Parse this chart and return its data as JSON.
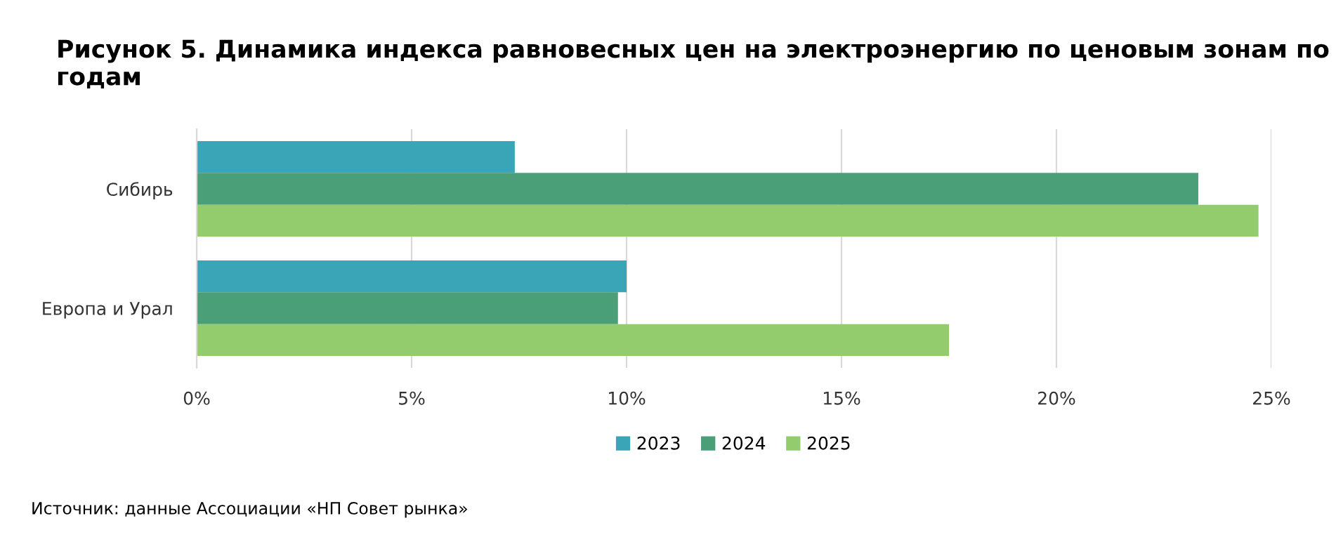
{
  "chart_data": {
    "type": "bar",
    "orientation": "horizontal",
    "title": "Рисунок 5. Динамика индекса равновесных цен на электроэнергию по ценовым зонам по годам",
    "categories": [
      "Сибирь",
      "Европа и Урал"
    ],
    "series": [
      {
        "name": "2023",
        "color": "#3ba5b8",
        "values": [
          7.4,
          10.0
        ]
      },
      {
        "name": "2024",
        "color": "#4a9e78",
        "values": [
          23.3,
          9.8
        ]
      },
      {
        "name": "2025",
        "color": "#92cc6c",
        "values": [
          24.7,
          17.5
        ]
      }
    ],
    "xlim": [
      0,
      25
    ],
    "xticks": [
      {
        "value": 0,
        "label": "0%"
      },
      {
        "value": 5,
        "label": "5%"
      },
      {
        "value": 10,
        "label": "10%"
      },
      {
        "value": 15,
        "label": "15%"
      },
      {
        "value": 20,
        "label": "20%"
      },
      {
        "value": 25,
        "label": "25%"
      }
    ],
    "grid": "x",
    "legend": "bottom",
    "annotations": [
      "Источник: данные Ассоциации «НП Совет рынка»"
    ]
  }
}
